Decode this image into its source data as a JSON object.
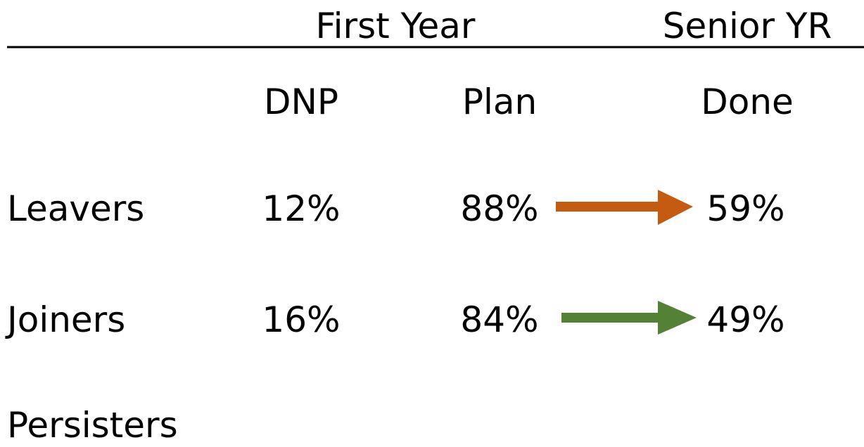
{
  "table": {
    "groups": [
      "First Year",
      "Senior YR"
    ],
    "columns": [
      "DNP",
      "Plan",
      "Done"
    ],
    "rows": [
      [
        "Leavers",
        "12%",
        "88%",
        "59%"
      ],
      [
        "Joiners",
        "16%",
        "84%",
        "49%"
      ],
      [
        "Persisters"
      ]
    ]
  }
}
